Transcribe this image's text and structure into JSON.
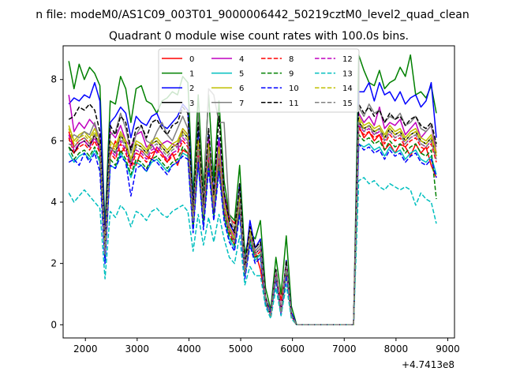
{
  "figure": {
    "suptitle": "n file: modeM0/AS1C09_003T01_9000006442_50219cztM0_level2_quad_clean",
    "title": "Quadrant 0 module wise count rates with 100.0s bins.",
    "offset_text": "+4.7413e8"
  },
  "chart_data": {
    "type": "line",
    "title": "Quadrant 0 module wise count rates with 100.0s bins.",
    "xlabel": "",
    "ylabel": "",
    "x_offset": 474130000,
    "xlim": [
      1570,
      9130
    ],
    "ylim": [
      -0.43,
      9.1
    ],
    "xticks": [
      2000,
      3000,
      4000,
      5000,
      6000,
      7000,
      8000,
      9000
    ],
    "yticks": [
      0,
      2,
      4,
      6,
      8
    ],
    "grid": false,
    "legend_position": "top-center",
    "legend_columns": 4,
    "x": [
      1680,
      1780,
      1880,
      1980,
      2080,
      2180,
      2280,
      2380,
      2480,
      2580,
      2680,
      2780,
      2880,
      2980,
      3080,
      3180,
      3280,
      3380,
      3480,
      3580,
      3680,
      3780,
      3880,
      3980,
      4080,
      4180,
      4280,
      4380,
      4480,
      4580,
      4680,
      4780,
      4880,
      4980,
      5080,
      5180,
      5280,
      5380,
      5480,
      5580,
      5680,
      5780,
      5880,
      5980,
      6080,
      6180,
      7180,
      7280,
      7380,
      7480,
      7580,
      7680,
      7780,
      7880,
      7980,
      8080,
      8180,
      8280,
      8380,
      8480,
      8580,
      8680,
      8780
    ],
    "series": [
      {
        "name": "0",
        "color": "#ff0000",
        "dash": "solid",
        "values": [
          6.3,
          5.8,
          6.0,
          6.1,
          5.9,
          6.2,
          5.7,
          2.5,
          5.5,
          6.0,
          5.6,
          5.8,
          5.3,
          5.2,
          5.7,
          5.5,
          5.4,
          5.8,
          5.6,
          5.3,
          5.6,
          5.2,
          5.7,
          5.6,
          4.0,
          5.6,
          4.1,
          5.4,
          4.4,
          5.3,
          4.3,
          3.5,
          3.3,
          4.2,
          2.0,
          2.6,
          2.4,
          1.8,
          0.8,
          0.4,
          1.6,
          0.8,
          1.8,
          0.3,
          0.0,
          0.0,
          0.0,
          6.5,
          6.1,
          6.3,
          6.0,
          6.2,
          5.7,
          5.9,
          5.6,
          5.9,
          5.8,
          5.5,
          5.9,
          5.6,
          5.8,
          5.2,
          4.8
        ]
      },
      {
        "name": "1",
        "color": "#008000",
        "dash": "solid",
        "values": [
          8.6,
          7.7,
          8.5,
          8.0,
          8.4,
          8.2,
          7.8,
          3.2,
          7.3,
          7.2,
          8.1,
          7.7,
          6.6,
          7.7,
          7.8,
          7.3,
          7.2,
          6.9,
          7.3,
          7.4,
          7.6,
          7.5,
          8.1,
          7.9,
          4.2,
          7.5,
          4.4,
          7.5,
          4.7,
          7.3,
          4.7,
          3.6,
          3.4,
          5.2,
          2.3,
          3.0,
          2.8,
          3.4,
          1.2,
          0.5,
          2.2,
          1.0,
          2.9,
          0.6,
          0.0,
          0.0,
          0.0,
          8.8,
          8.3,
          7.9,
          7.8,
          8.3,
          7.7,
          7.9,
          8.0,
          8.4,
          8.1,
          8.8,
          7.5,
          7.6,
          7.4,
          7.8,
          6.9
        ]
      },
      {
        "name": "2",
        "color": "#0000ff",
        "dash": "solid",
        "values": [
          7.2,
          7.4,
          7.3,
          7.5,
          7.4,
          7.9,
          7.3,
          2.8,
          6.6,
          6.8,
          7.1,
          6.9,
          6.1,
          6.8,
          6.6,
          6.5,
          6.8,
          6.9,
          6.5,
          6.4,
          6.6,
          6.8,
          7.2,
          7.0,
          3.9,
          6.4,
          4.0,
          6.2,
          4.3,
          6.1,
          4.3,
          3.3,
          3.0,
          4.6,
          1.9,
          3.4,
          2.5,
          2.8,
          0.9,
          0.4,
          1.8,
          0.4,
          2.1,
          0.4,
          0.0,
          0.0,
          0.0,
          7.6,
          7.6,
          7.9,
          7.3,
          7.9,
          7.5,
          7.6,
          7.3,
          7.6,
          7.2,
          7.4,
          7.5,
          7.1,
          7.3,
          7.9,
          6.1
        ]
      },
      {
        "name": "3",
        "color": "#000000",
        "dash": "solid",
        "values": [
          5.8,
          5.6,
          5.9,
          6.0,
          5.8,
          6.2,
          5.8,
          2.3,
          5.8,
          5.6,
          6.2,
          5.9,
          5.2,
          5.9,
          5.8,
          5.6,
          5.9,
          6.0,
          5.8,
          5.6,
          5.8,
          5.9,
          6.3,
          6.1,
          3.4,
          5.9,
          3.6,
          5.8,
          3.9,
          5.7,
          3.9,
          3.1,
          2.7,
          4.1,
          1.7,
          3.0,
          2.3,
          2.5,
          0.8,
          0.3,
          1.7,
          0.4,
          1.9,
          0.3,
          0.0,
          0.0,
          0.0,
          6.6,
          6.4,
          6.5,
          6.3,
          6.4,
          6.1,
          6.4,
          6.2,
          6.3,
          6.0,
          6.2,
          6.3,
          6.0,
          5.9,
          6.1,
          5.5
        ]
      },
      {
        "name": "4",
        "color": "#bf00bf",
        "dash": "solid",
        "values": [
          7.5,
          6.3,
          6.6,
          6.4,
          6.7,
          6.5,
          6.1,
          2.6,
          6.3,
          6.1,
          6.5,
          6.0,
          5.8,
          6.2,
          6.3,
          5.8,
          5.9,
          5.6,
          5.9,
          6.0,
          5.9,
          5.8,
          6.4,
          6.2,
          3.6,
          6.0,
          3.8,
          6.1,
          4.0,
          6.0,
          4.1,
          3.2,
          2.9,
          4.4,
          1.8,
          2.9,
          2.4,
          2.6,
          0.9,
          0.3,
          1.8,
          0.5,
          1.9,
          0.3,
          0.0,
          0.0,
          0.0,
          6.9,
          6.6,
          6.8,
          6.5,
          7.1,
          6.4,
          6.6,
          6.5,
          6.7,
          6.2,
          6.4,
          6.6,
          6.1,
          6.3,
          6.5,
          5.6
        ]
      },
      {
        "name": "5",
        "color": "#00bfbf",
        "dash": "solid",
        "values": [
          5.6,
          5.3,
          5.5,
          5.6,
          5.4,
          5.7,
          5.3,
          2.1,
          5.2,
          5.1,
          5.6,
          5.3,
          4.8,
          5.3,
          5.2,
          5.0,
          5.3,
          5.4,
          5.2,
          5.0,
          5.2,
          5.3,
          5.6,
          5.5,
          3.1,
          5.3,
          3.2,
          5.2,
          3.5,
          5.1,
          3.5,
          2.8,
          2.5,
          3.7,
          1.6,
          2.7,
          2.1,
          2.3,
          0.7,
          0.3,
          1.5,
          0.4,
          1.7,
          0.3,
          0.0,
          0.0,
          0.0,
          5.9,
          5.8,
          5.9,
          5.7,
          5.8,
          5.5,
          5.8,
          5.6,
          5.7,
          5.4,
          5.6,
          5.7,
          5.4,
          5.3,
          5.5,
          4.9
        ]
      },
      {
        "name": "6",
        "color": "#bfbf00",
        "dash": "solid",
        "values": [
          6.5,
          6.0,
          6.2,
          6.3,
          6.1,
          6.4,
          6.0,
          2.4,
          6.0,
          5.8,
          6.3,
          6.0,
          5.4,
          6.0,
          5.9,
          5.7,
          6.0,
          6.1,
          5.9,
          5.7,
          5.9,
          6.0,
          6.4,
          6.2,
          3.5,
          6.0,
          3.7,
          5.9,
          4.0,
          5.8,
          4.0,
          3.2,
          2.8,
          4.2,
          1.8,
          3.1,
          2.4,
          2.6,
          0.8,
          0.3,
          1.7,
          0.4,
          2.0,
          0.3,
          0.0,
          0.0,
          0.0,
          6.8,
          6.5,
          6.6,
          6.4,
          6.5,
          6.2,
          6.5,
          6.3,
          6.4,
          6.1,
          6.3,
          6.4,
          6.1,
          6.0,
          6.2,
          5.6
        ]
      },
      {
        "name": "7",
        "color": "#808080",
        "dash": "solid",
        "values": [
          6.0,
          6.2,
          6.1,
          6.3,
          6.2,
          6.6,
          6.0,
          2.3,
          6.2,
          6.3,
          6.9,
          6.4,
          5.6,
          6.2,
          6.5,
          6.0,
          5.9,
          6.3,
          6.6,
          6.2,
          6.0,
          6.4,
          6.8,
          6.4,
          3.6,
          6.9,
          3.9,
          7.7,
          7.5,
          6.6,
          6.6,
          3.6,
          3.1,
          4.4,
          1.9,
          3.0,
          2.4,
          2.6,
          0.9,
          0.3,
          1.8,
          0.4,
          2.0,
          0.3,
          0.0,
          0.0,
          0.0,
          7.1,
          6.8,
          7.2,
          6.9,
          7.0,
          6.6,
          6.8,
          6.7,
          6.9,
          6.5,
          6.6,
          6.8,
          6.4,
          6.3,
          6.5,
          5.8
        ]
      },
      {
        "name": "8",
        "color": "#ff0000",
        "dash": "dashed",
        "values": [
          6.1,
          5.6,
          5.8,
          5.9,
          5.7,
          6.0,
          5.6,
          2.3,
          5.6,
          5.4,
          5.9,
          5.6,
          5.1,
          5.6,
          5.5,
          5.3,
          5.6,
          5.7,
          5.5,
          5.3,
          5.5,
          5.6,
          6.0,
          5.8,
          3.3,
          5.6,
          3.5,
          5.5,
          3.7,
          5.4,
          3.7,
          3.0,
          2.6,
          3.9,
          1.7,
          2.9,
          2.2,
          2.4,
          0.8,
          0.3,
          1.6,
          0.4,
          1.8,
          0.3,
          0.0,
          0.0,
          0.0,
          6.4,
          6.2,
          6.3,
          6.1,
          6.2,
          5.9,
          6.2,
          6.0,
          6.1,
          5.8,
          6.0,
          6.1,
          5.8,
          5.7,
          5.9,
          5.3
        ]
      },
      {
        "name": "9",
        "color": "#008000",
        "dash": "dashed",
        "values": [
          5.8,
          5.4,
          5.6,
          5.7,
          5.5,
          5.8,
          5.4,
          2.2,
          5.4,
          5.2,
          5.7,
          5.4,
          4.9,
          5.4,
          5.3,
          5.1,
          5.4,
          5.5,
          5.3,
          5.1,
          5.3,
          5.4,
          5.8,
          5.6,
          3.2,
          5.4,
          3.4,
          5.3,
          3.6,
          5.2,
          3.6,
          2.9,
          2.6,
          3.8,
          1.6,
          2.8,
          2.2,
          2.3,
          0.7,
          0.3,
          1.6,
          0.4,
          1.7,
          0.3,
          0.0,
          0.0,
          0.0,
          6.2,
          6.0,
          6.1,
          5.9,
          6.0,
          5.7,
          6.0,
          5.8,
          5.9,
          5.6,
          5.8,
          5.9,
          5.6,
          5.5,
          5.7,
          4.1
        ]
      },
      {
        "name": "10",
        "color": "#0000ff",
        "dash": "dashed",
        "values": [
          5.3,
          5.4,
          5.2,
          5.6,
          5.3,
          5.6,
          5.0,
          2.0,
          5.2,
          5.1,
          5.5,
          5.3,
          4.2,
          5.1,
          5.2,
          5.0,
          5.4,
          5.3,
          5.1,
          4.9,
          5.2,
          5.3,
          5.5,
          5.4,
          3.0,
          5.3,
          3.1,
          5.1,
          3.4,
          5.0,
          3.4,
          2.7,
          2.4,
          3.6,
          1.5,
          2.6,
          2.0,
          2.2,
          0.7,
          0.3,
          1.5,
          0.3,
          1.6,
          0.3,
          0.0,
          0.0,
          0.0,
          5.9,
          5.7,
          5.8,
          5.6,
          5.7,
          5.4,
          5.7,
          5.5,
          5.6,
          5.3,
          5.5,
          5.6,
          5.3,
          5.2,
          5.4,
          4.8
        ]
      },
      {
        "name": "11",
        "color": "#000000",
        "dash": "dashed",
        "values": [
          6.7,
          6.8,
          7.1,
          7.0,
          7.2,
          7.0,
          6.3,
          2.5,
          6.5,
          6.2,
          6.8,
          6.6,
          5.7,
          6.4,
          6.5,
          6.1,
          6.6,
          6.7,
          6.4,
          6.2,
          6.5,
          6.6,
          7.1,
          6.9,
          3.7,
          6.6,
          3.9,
          6.4,
          4.2,
          6.8,
          4.3,
          3.4,
          3.0,
          4.6,
          1.9,
          3.2,
          2.5,
          2.7,
          0.9,
          0.3,
          1.8,
          0.4,
          2.1,
          0.3,
          0.0,
          0.0,
          0.0,
          7.2,
          6.9,
          7.1,
          6.8,
          7.0,
          6.6,
          6.9,
          6.7,
          6.8,
          6.5,
          6.7,
          6.8,
          6.5,
          6.4,
          6.6,
          5.9
        ]
      },
      {
        "name": "12",
        "color": "#bf00bf",
        "dash": "dashed",
        "values": [
          6.2,
          5.7,
          5.9,
          6.0,
          5.8,
          6.1,
          5.7,
          2.4,
          5.7,
          5.5,
          6.0,
          5.7,
          5.2,
          5.7,
          5.6,
          5.4,
          5.7,
          5.8,
          5.6,
          5.4,
          5.6,
          5.7,
          6.1,
          5.9,
          3.4,
          5.7,
          3.6,
          5.6,
          3.8,
          5.5,
          3.8,
          3.1,
          2.7,
          4.0,
          1.7,
          2.9,
          2.3,
          2.5,
          0.8,
          0.3,
          1.7,
          0.4,
          1.9,
          0.3,
          0.0,
          0.0,
          0.0,
          6.5,
          6.3,
          6.4,
          6.2,
          6.3,
          6.0,
          6.3,
          6.1,
          6.2,
          5.9,
          6.1,
          6.2,
          5.9,
          5.8,
          6.0,
          5.4
        ]
      },
      {
        "name": "13",
        "color": "#00bfbf",
        "dash": "dashed",
        "values": [
          4.3,
          4.0,
          4.2,
          4.4,
          4.2,
          4.0,
          3.8,
          1.5,
          3.7,
          3.5,
          3.9,
          3.7,
          3.2,
          3.7,
          3.6,
          3.4,
          3.7,
          3.8,
          3.6,
          3.5,
          3.7,
          3.8,
          3.9,
          3.7,
          2.4,
          3.6,
          2.6,
          3.5,
          2.7,
          3.6,
          2.8,
          2.2,
          2.0,
          2.9,
          1.3,
          1.9,
          1.6,
          1.6,
          0.6,
          0.2,
          1.2,
          0.3,
          1.3,
          0.2,
          0.0,
          0.0,
          0.0,
          4.7,
          4.8,
          4.6,
          4.7,
          4.5,
          4.4,
          4.6,
          4.5,
          4.4,
          4.5,
          4.4,
          3.9,
          4.3,
          4.1,
          4.0,
          3.3
        ]
      },
      {
        "name": "14",
        "color": "#bfbf00",
        "dash": "dashed",
        "values": [
          6.4,
          5.9,
          6.1,
          6.2,
          6.0,
          6.3,
          5.9,
          2.4,
          5.9,
          5.7,
          6.2,
          5.9,
          5.3,
          5.9,
          5.8,
          5.6,
          5.9,
          6.0,
          5.8,
          5.6,
          5.8,
          5.9,
          6.3,
          6.1,
          3.4,
          5.9,
          3.6,
          5.8,
          3.9,
          5.7,
          3.9,
          3.1,
          2.8,
          4.1,
          1.7,
          3.0,
          2.3,
          2.5,
          0.8,
          0.3,
          1.7,
          0.4,
          1.9,
          0.3,
          0.0,
          0.0,
          0.0,
          6.7,
          6.4,
          6.5,
          6.3,
          6.4,
          6.1,
          6.4,
          6.2,
          6.3,
          6.0,
          6.2,
          6.3,
          6.0,
          5.9,
          6.1,
          5.5
        ]
      },
      {
        "name": "15",
        "color": "#808080",
        "dash": "dashed",
        "values": [
          5.9,
          5.8,
          6.0,
          6.1,
          5.9,
          6.2,
          5.8,
          2.3,
          5.8,
          5.6,
          6.1,
          5.8,
          5.3,
          5.8,
          5.7,
          5.5,
          5.8,
          5.9,
          5.7,
          5.5,
          5.7,
          5.8,
          6.2,
          6.0,
          3.4,
          5.8,
          3.6,
          5.7,
          3.8,
          5.6,
          3.8,
          3.1,
          2.7,
          4.0,
          1.7,
          2.9,
          2.3,
          2.5,
          0.8,
          0.3,
          1.7,
          0.4,
          1.9,
          0.3,
          0.0,
          0.0,
          0.0,
          6.6,
          6.3,
          6.5,
          6.2,
          6.4,
          6.0,
          6.3,
          6.1,
          6.2,
          5.9,
          6.1,
          6.2,
          5.9,
          5.8,
          6.0,
          5.4
        ]
      }
    ]
  }
}
